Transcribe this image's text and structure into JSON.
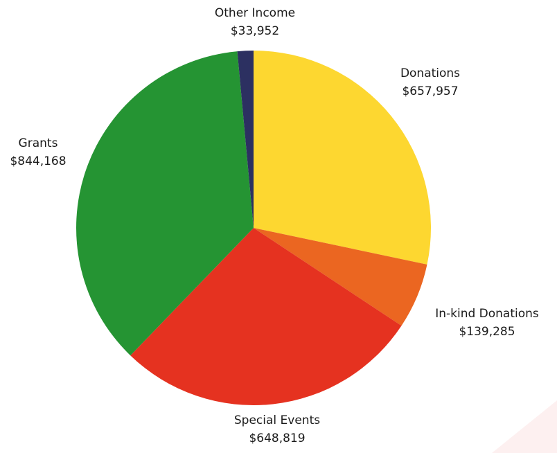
{
  "chart_data": {
    "type": "pie",
    "title": "",
    "start": "12 o'clock",
    "direction": "clockwise",
    "slices": [
      {
        "label": "Donations",
        "value_text": "$657,957",
        "value": 657957,
        "color": "#fdd730"
      },
      {
        "label": "In-kind Donations",
        "value_text": "$139,285",
        "value": 139285,
        "color": "#eb6621"
      },
      {
        "label": "Special Events",
        "value_text": "$648,819",
        "value": 648819,
        "color": "#e53220"
      },
      {
        "label": "Grants",
        "value_text": "$844,168",
        "value": 844168,
        "color": "#259433"
      },
      {
        "label": "Other Income",
        "value_text": "$33,952",
        "value": 33952,
        "color": "#2c3061"
      }
    ]
  }
}
